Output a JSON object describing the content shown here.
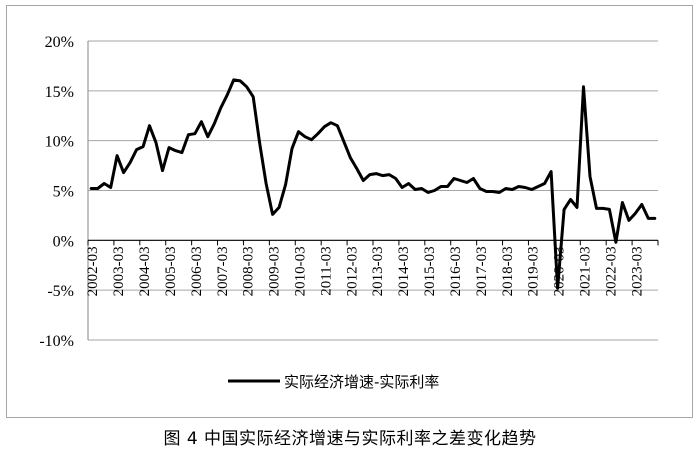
{
  "chart_data": {
    "type": "line",
    "title": "",
    "xlabel": "",
    "ylabel": "",
    "ylim": [
      -0.1,
      0.2
    ],
    "yticks": [
      -0.1,
      -0.05,
      0.0,
      0.05,
      0.1,
      0.15,
      0.2
    ],
    "ytick_labels": [
      "-10%",
      "-5%",
      "0%",
      "5%",
      "10%",
      "15%",
      "20%"
    ],
    "xtick_labels": [
      "2002-03",
      "2003-03",
      "2004-03",
      "2005-03",
      "2006-03",
      "2007-03",
      "2008-03",
      "2009-03",
      "2010-03",
      "2011-03",
      "2012-03",
      "2013-03",
      "2014-03",
      "2015-03",
      "2016-03",
      "2017-03",
      "2018-03",
      "2019-03",
      "2020-03",
      "2021-03",
      "2022-03",
      "2023-03"
    ],
    "grid": "horizontal",
    "legend_position": "bottom",
    "series": [
      {
        "name": "实际经济增速-实际利率",
        "color": "#000000",
        "start": "2002-03",
        "frequency": "quarterly",
        "values": [
          0.052,
          0.052,
          0.057,
          0.053,
          0.085,
          0.068,
          0.078,
          0.091,
          0.094,
          0.115,
          0.098,
          0.07,
          0.093,
          0.09,
          0.088,
          0.106,
          0.107,
          0.119,
          0.104,
          0.117,
          0.133,
          0.146,
          0.161,
          0.16,
          0.154,
          0.144,
          0.098,
          0.057,
          0.026,
          0.033,
          0.056,
          0.092,
          0.109,
          0.104,
          0.101,
          0.107,
          0.114,
          0.118,
          0.115,
          0.099,
          0.083,
          0.072,
          0.06,
          0.066,
          0.067,
          0.065,
          0.066,
          0.062,
          0.053,
          0.057,
          0.051,
          0.052,
          0.048,
          0.05,
          0.054,
          0.054,
          0.062,
          0.06,
          0.058,
          0.062,
          0.052,
          0.049,
          0.049,
          0.048,
          0.052,
          0.051,
          0.054,
          0.053,
          0.051,
          0.054,
          0.057,
          0.069,
          -0.048,
          0.031,
          0.041,
          0.033,
          0.154,
          0.064,
          0.032,
          0.032,
          0.031,
          -0.002,
          0.038,
          0.02,
          0.027,
          0.036,
          0.022,
          0.022
        ]
      }
    ]
  },
  "legend": {
    "label": "实际经济增速-实际利率"
  },
  "caption": "图 4  中国实际经济增速与实际利率之差变化趋势"
}
